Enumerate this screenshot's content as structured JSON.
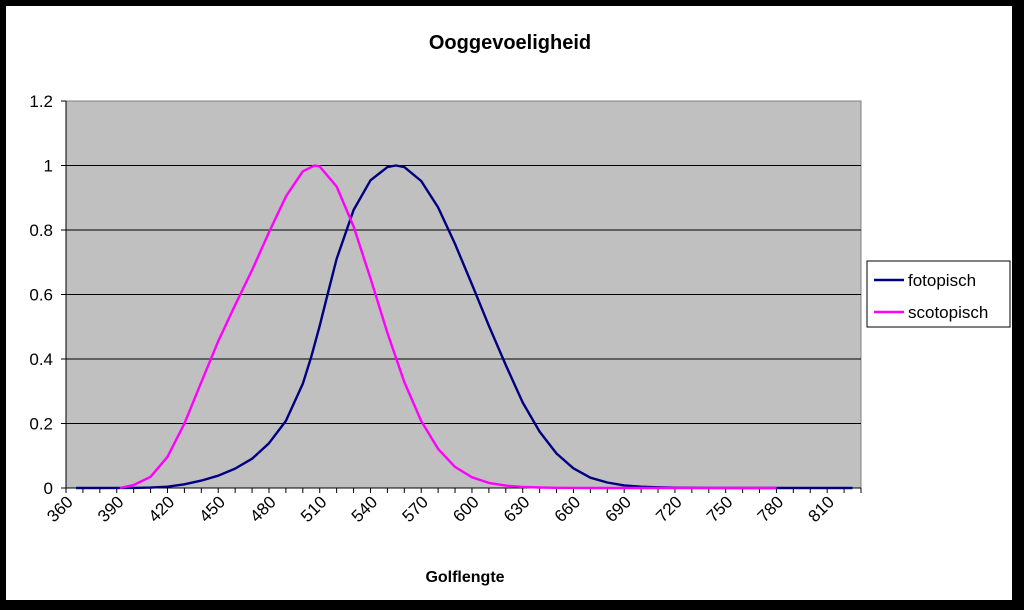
{
  "chart_data": {
    "type": "line",
    "title": "Ooggevoeligheid",
    "xlabel": "Golflengte",
    "ylabel": "",
    "xlim": [
      360,
      830
    ],
    "ylim": [
      0,
      1.2
    ],
    "y_ticks": [
      "0",
      "0.2",
      "0.4",
      "0.6",
      "0.8",
      "1",
      "1.2"
    ],
    "x_ticks": [
      "360",
      "390",
      "420",
      "450",
      "480",
      "510",
      "540",
      "570",
      "600",
      "630",
      "660",
      "690",
      "720",
      "750",
      "780",
      "810"
    ],
    "grid": "horizontal",
    "legend_position": "right",
    "plot_background": "#c0c0c0",
    "series": [
      {
        "name": "fotopisch",
        "color": "#000080",
        "x": [
          366,
          380,
          400,
          410,
          420,
          430,
          440,
          450,
          460,
          470,
          480,
          490,
          500,
          505,
          510,
          515,
          520,
          530,
          540,
          550,
          555,
          560,
          570,
          580,
          590,
          600,
          610,
          620,
          630,
          640,
          650,
          660,
          670,
          680,
          690,
          700,
          710,
          720,
          740,
          760,
          780,
          800,
          825
        ],
        "values": [
          0,
          0,
          0.0004,
          0.0012,
          0.004,
          0.0116,
          0.023,
          0.038,
          0.06,
          0.091,
          0.139,
          0.208,
          0.323,
          0.407,
          0.503,
          0.608,
          0.71,
          0.862,
          0.954,
          0.995,
          1.0,
          0.995,
          0.952,
          0.87,
          0.757,
          0.631,
          0.503,
          0.381,
          0.265,
          0.175,
          0.107,
          0.061,
          0.032,
          0.017,
          0.0082,
          0.0041,
          0.0021,
          0.001,
          0.0003,
          0.0001,
          0,
          0,
          0
        ]
      },
      {
        "name": "scotopisch",
        "color": "#ff00ff",
        "x": [
          392,
          400,
          410,
          420,
          430,
          440,
          450,
          460,
          470,
          480,
          490,
          500,
          507,
          510,
          520,
          530,
          540,
          550,
          560,
          570,
          580,
          590,
          600,
          610,
          620,
          630,
          640,
          650,
          660,
          670,
          680,
          700,
          720,
          740,
          760,
          780
        ],
        "values": [
          0,
          0.0093,
          0.0348,
          0.0966,
          0.1998,
          0.3281,
          0.455,
          0.567,
          0.676,
          0.793,
          0.904,
          0.982,
          1.0,
          0.997,
          0.935,
          0.811,
          0.65,
          0.481,
          0.3288,
          0.2076,
          0.1212,
          0.0655,
          0.03315,
          0.01593,
          0.00737,
          0.003335,
          0.001497,
          0.000677,
          0.000313,
          0.000148,
          7.15e-05,
          1.78e-05,
          0,
          0,
          0,
          0
        ]
      }
    ]
  }
}
